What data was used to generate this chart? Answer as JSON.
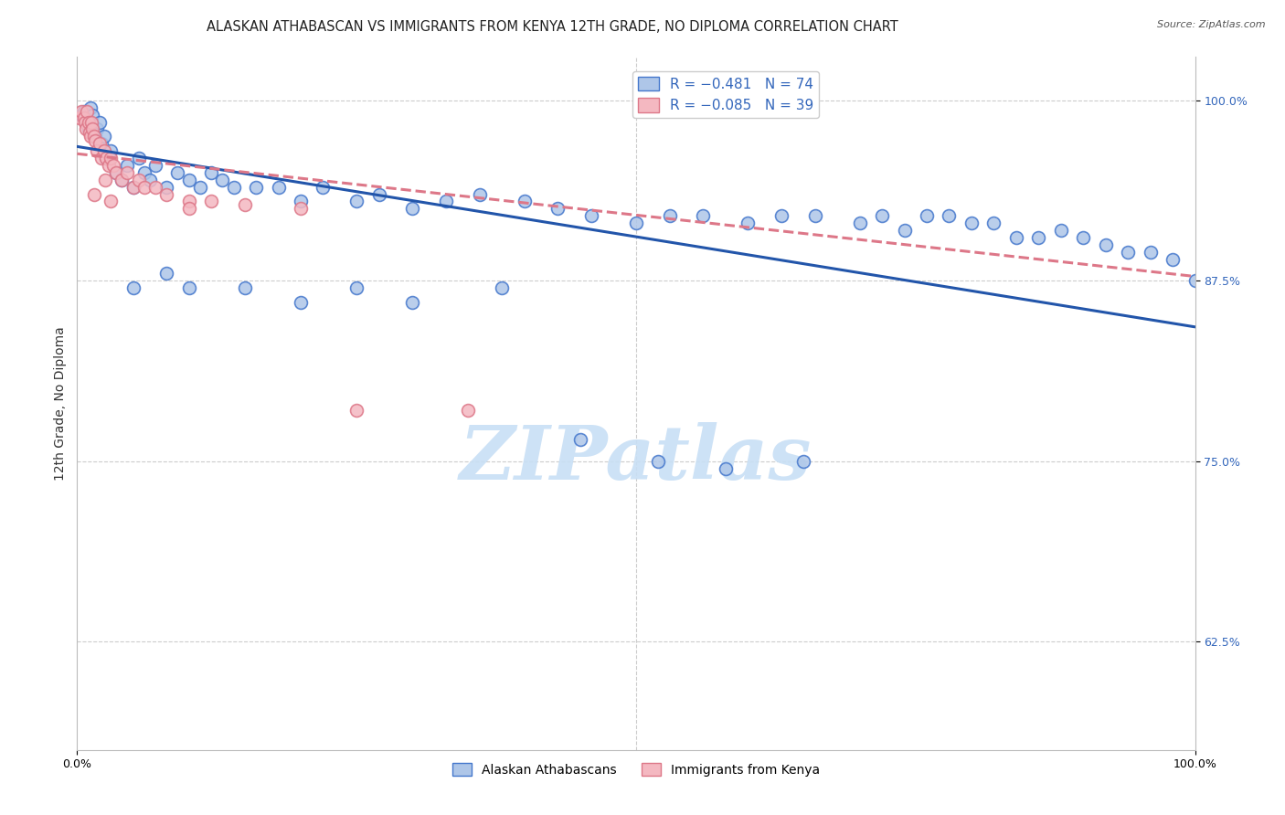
{
  "title": "ALASKAN ATHABASCAN VS IMMIGRANTS FROM KENYA 12TH GRADE, NO DIPLOMA CORRELATION CHART",
  "source": "Source: ZipAtlas.com",
  "ylabel": "12th Grade, No Diploma",
  "xlim": [
    0.0,
    1.0
  ],
  "ylim": [
    0.55,
    1.03
  ],
  "yticks": [
    0.625,
    0.75,
    0.875,
    1.0
  ],
  "ytick_labels": [
    "62.5%",
    "75.0%",
    "87.5%",
    "100.0%"
  ],
  "xtick_labels": [
    "0.0%",
    "100.0%"
  ],
  "legend_r_entries": [
    {
      "label": "R = −0.481   N = 74",
      "color": "#aec6e8",
      "edge": "#4477cc"
    },
    {
      "label": "R = −0.085   N = 39",
      "color": "#f4b8c1",
      "edge": "#dd7788"
    }
  ],
  "legend_bottom": [
    "Alaskan Athabascans",
    "Immigrants from Kenya"
  ],
  "blue_color": "#aec6e8",
  "blue_edge": "#4477cc",
  "pink_color": "#f4b8c1",
  "pink_edge": "#dd7788",
  "blue_line_color": "#2255aa",
  "pink_line_color": "#cc6677",
  "blue_scatter_x": [
    0.004,
    0.006,
    0.008,
    0.01,
    0.012,
    0.014,
    0.016,
    0.018,
    0.02,
    0.022,
    0.024,
    0.026,
    0.03,
    0.035,
    0.04,
    0.045,
    0.05,
    0.055,
    0.06,
    0.065,
    0.07,
    0.08,
    0.09,
    0.1,
    0.11,
    0.12,
    0.13,
    0.14,
    0.16,
    0.18,
    0.2,
    0.22,
    0.25,
    0.27,
    0.3,
    0.33,
    0.36,
    0.4,
    0.43,
    0.46,
    0.5,
    0.53,
    0.56,
    0.6,
    0.63,
    0.66,
    0.7,
    0.72,
    0.74,
    0.76,
    0.78,
    0.8,
    0.82,
    0.84,
    0.86,
    0.88,
    0.9,
    0.92,
    0.94,
    0.96,
    0.98,
    1.0,
    0.05,
    0.08,
    0.1,
    0.15,
    0.2,
    0.25,
    0.3,
    0.38,
    0.45,
    0.52,
    0.58,
    0.65
  ],
  "blue_scatter_y": [
    0.99,
    0.992,
    0.985,
    0.98,
    0.995,
    0.99,
    0.975,
    0.98,
    0.985,
    0.97,
    0.975,
    0.96,
    0.965,
    0.95,
    0.945,
    0.955,
    0.94,
    0.96,
    0.95,
    0.945,
    0.955,
    0.94,
    0.95,
    0.945,
    0.94,
    0.95,
    0.945,
    0.94,
    0.94,
    0.94,
    0.93,
    0.94,
    0.93,
    0.935,
    0.925,
    0.93,
    0.935,
    0.93,
    0.925,
    0.92,
    0.915,
    0.92,
    0.92,
    0.915,
    0.92,
    0.92,
    0.915,
    0.92,
    0.91,
    0.92,
    0.92,
    0.915,
    0.915,
    0.905,
    0.905,
    0.91,
    0.905,
    0.9,
    0.895,
    0.895,
    0.89,
    0.875,
    0.87,
    0.88,
    0.87,
    0.87,
    0.86,
    0.87,
    0.86,
    0.87,
    0.765,
    0.75,
    0.745,
    0.75
  ],
  "pink_scatter_x": [
    0.002,
    0.004,
    0.006,
    0.007,
    0.008,
    0.009,
    0.01,
    0.011,
    0.012,
    0.013,
    0.014,
    0.015,
    0.016,
    0.018,
    0.02,
    0.022,
    0.024,
    0.026,
    0.028,
    0.03,
    0.032,
    0.035,
    0.04,
    0.045,
    0.05,
    0.055,
    0.06,
    0.07,
    0.08,
    0.1,
    0.12,
    0.15,
    0.2,
    0.03,
    0.025,
    0.015,
    0.1,
    0.25,
    0.35
  ],
  "pink_scatter_y": [
    0.988,
    0.992,
    0.988,
    0.985,
    0.98,
    0.992,
    0.985,
    0.978,
    0.975,
    0.985,
    0.98,
    0.975,
    0.972,
    0.965,
    0.97,
    0.96,
    0.965,
    0.96,
    0.955,
    0.96,
    0.955,
    0.95,
    0.945,
    0.95,
    0.94,
    0.945,
    0.94,
    0.94,
    0.935,
    0.93,
    0.93,
    0.928,
    0.925,
    0.93,
    0.945,
    0.935,
    0.925,
    0.785,
    0.785
  ],
  "blue_line_x": [
    0.0,
    1.0
  ],
  "blue_line_y": [
    0.968,
    0.843
  ],
  "pink_line_x": [
    0.0,
    1.0
  ],
  "pink_line_y": [
    0.963,
    0.878
  ],
  "watermark_text": "ZIPatlas",
  "watermark_color": "#c8dff5",
  "background_color": "#ffffff",
  "grid_color": "#cccccc",
  "title_fontsize": 10.5,
  "axis_label_fontsize": 10,
  "tick_fontsize": 9,
  "legend_fontsize": 11,
  "scatter_size": 100,
  "scatter_linewidth": 1.2,
  "scatter_alpha": 0.85,
  "trend_linewidth": 2.2
}
